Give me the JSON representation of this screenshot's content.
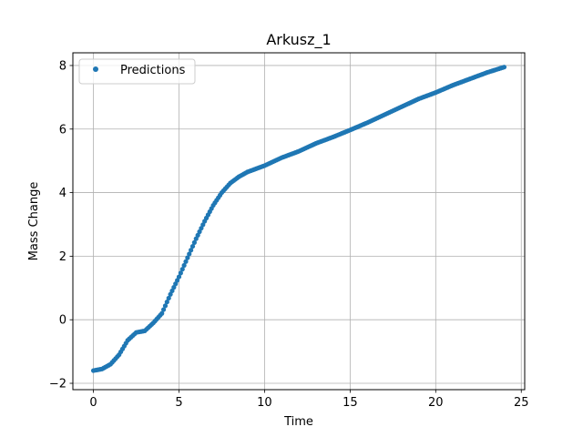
{
  "chart_data": {
    "type": "scatter",
    "title": "Arkusz_1",
    "xlabel": "Time",
    "ylabel": "Mass Change",
    "xlim": [
      -1.2,
      25.2
    ],
    "ylim": [
      -2.2,
      8.4
    ],
    "xticks": [
      0,
      5,
      10,
      15,
      20,
      25
    ],
    "yticks": [
      -2,
      0,
      2,
      4,
      6,
      8
    ],
    "grid": true,
    "legend_position": "top-left",
    "marker_color": "#1f77b4",
    "series": [
      {
        "name": "Predictions",
        "points": [
          [
            0,
            -1.6
          ],
          [
            0.5,
            -1.55
          ],
          [
            1,
            -1.4
          ],
          [
            1.5,
            -1.1
          ],
          [
            2,
            -0.65
          ],
          [
            2.5,
            -0.4
          ],
          [
            3,
            -0.35
          ],
          [
            3.5,
            -0.1
          ],
          [
            4,
            0.2
          ],
          [
            4.5,
            0.8
          ],
          [
            5,
            1.35
          ],
          [
            5.5,
            1.95
          ],
          [
            6,
            2.55
          ],
          [
            6.5,
            3.1
          ],
          [
            7,
            3.6
          ],
          [
            7.5,
            4.0
          ],
          [
            8,
            4.3
          ],
          [
            8.5,
            4.5
          ],
          [
            9,
            4.65
          ],
          [
            10,
            4.85
          ],
          [
            11,
            5.1
          ],
          [
            12,
            5.3
          ],
          [
            13,
            5.55
          ],
          [
            14,
            5.75
          ],
          [
            15,
            5.97
          ],
          [
            16,
            6.2
          ],
          [
            17,
            6.45
          ],
          [
            18,
            6.7
          ],
          [
            19,
            6.95
          ],
          [
            20,
            7.15
          ],
          [
            21,
            7.38
          ],
          [
            22,
            7.58
          ],
          [
            23,
            7.78
          ],
          [
            24,
            7.95
          ]
        ]
      }
    ]
  }
}
